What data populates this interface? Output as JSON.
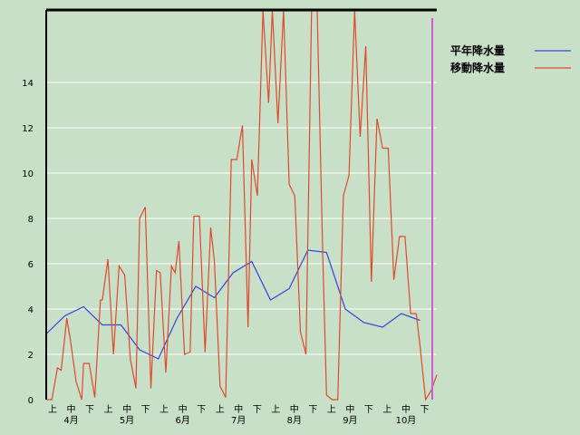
{
  "chart_data": {
    "type": "line",
    "title": "",
    "xlabel": "",
    "ylabel": "",
    "ylim": [
      0,
      17.2
    ],
    "yticks": [
      0,
      2,
      4,
      6,
      8,
      10,
      12,
      14
    ],
    "grid": true,
    "legend_position": "top-right",
    "x_sub_labels": [
      "上",
      "中",
      "下",
      "上",
      "中",
      "下",
      "上",
      "中",
      "下",
      "上",
      "中",
      "下",
      "上",
      "中",
      "下",
      "上",
      "中",
      "下",
      "上",
      "中",
      "下"
    ],
    "months": [
      "4月",
      "5月",
      "6月",
      "7月",
      "8月",
      "9月",
      "10月"
    ],
    "series": [
      {
        "name": "平年降水量",
        "color": "#3344dd",
        "x": [
          0,
          1,
          2,
          3,
          4,
          5,
          6,
          7,
          8,
          9,
          10,
          11,
          12,
          13,
          14,
          15,
          16,
          17,
          18,
          19,
          20
        ],
        "values": [
          2.9,
          3.7,
          4.1,
          3.3,
          3.3,
          2.2,
          1.8,
          3.6,
          5.0,
          4.5,
          5.6,
          6.1,
          4.4,
          4.9,
          6.6,
          6.5,
          4.0,
          3.4,
          3.2,
          3.8,
          3.5
        ]
      },
      {
        "name": "移動降水量",
        "color": "#e04a2a",
        "x": [
          0,
          0.3,
          0.6,
          0.8,
          1.1,
          1.3,
          1.6,
          1.9,
          2.0,
          2.3,
          2.6,
          2.9,
          3.0,
          3.3,
          3.6,
          3.9,
          4.2,
          4.5,
          4.8,
          5.0,
          5.3,
          5.6,
          5.9,
          6.1,
          6.4,
          6.7,
          6.9,
          7.1,
          7.4,
          7.7,
          7.9,
          8.2,
          8.5,
          8.8,
          9.0,
          9.3,
          9.6,
          9.9,
          10.2,
          10.5,
          10.8,
          11.0,
          11.3,
          11.6,
          11.9,
          12.1,
          12.4,
          12.7,
          13.0,
          13.3,
          13.6,
          13.9,
          14.2,
          14.5,
          14.8,
          15.0,
          15.3,
          15.6,
          15.9,
          16.2,
          16.5,
          16.8,
          17.1,
          17.4,
          17.7,
          18.0,
          18.3,
          18.6,
          18.9,
          19.2,
          19.5,
          19.8,
          20.0,
          20.3,
          20.6,
          20.9
        ],
        "values": [
          0,
          0,
          1.4,
          1.3,
          3.6,
          2.6,
          0.8,
          0,
          1.6,
          1.6,
          0.1,
          4.4,
          4.4,
          6.2,
          2.0,
          5.9,
          5.5,
          1.8,
          0.5,
          8.0,
          8.5,
          0.5,
          5.7,
          5.6,
          1.2,
          5.9,
          5.6,
          7.0,
          2.0,
          2.1,
          8.1,
          8.1,
          2.1,
          7.6,
          6.1,
          0.6,
          0.1,
          10.6,
          10.6,
          12.1,
          3.2,
          10.6,
          9.0,
          17.2,
          13.1,
          17.2,
          12.2,
          17.2,
          9.5,
          9.0,
          3.0,
          2.0,
          17.2,
          17.2,
          6.3,
          0.2,
          0,
          0,
          9.0,
          9.9,
          17.2,
          11.6,
          15.6,
          5.2,
          12.4,
          11.1,
          11.1,
          5.3,
          7.2,
          7.2,
          3.8,
          3.8,
          2.4,
          0,
          0.4,
          1.1
        ]
      }
    ]
  }
}
